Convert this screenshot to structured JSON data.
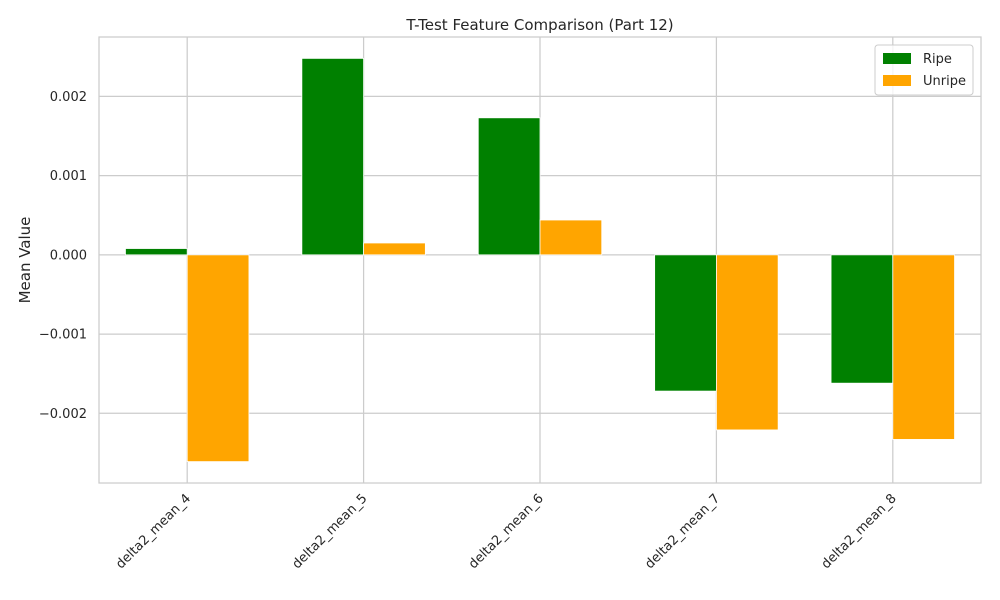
{
  "chart_data": {
    "type": "bar",
    "title": "T-Test Feature Comparison (Part 12)",
    "xlabel": "",
    "ylabel": "Mean Value",
    "categories": [
      "delta2_mean_4",
      "delta2_mean_5",
      "delta2_mean_6",
      "delta2_mean_7",
      "delta2_mean_8"
    ],
    "series": [
      {
        "name": "Ripe",
        "color": "#008000",
        "values": [
          8e-05,
          0.00248,
          0.00173,
          -0.00172,
          -0.00162
        ]
      },
      {
        "name": "Unripe",
        "color": "#FFA500",
        "values": [
          -0.00261,
          0.00015,
          0.00044,
          -0.00221,
          -0.00233
        ]
      }
    ],
    "ylim": [
      -0.00288,
      0.00275
    ],
    "yticks": [
      -0.002,
      -0.001,
      0.0,
      0.001,
      0.002
    ],
    "ytick_labels": [
      "−0.002",
      "−0.001",
      "0.000",
      "0.001",
      "0.002"
    ],
    "grid": true,
    "legend_position": "top-right"
  }
}
